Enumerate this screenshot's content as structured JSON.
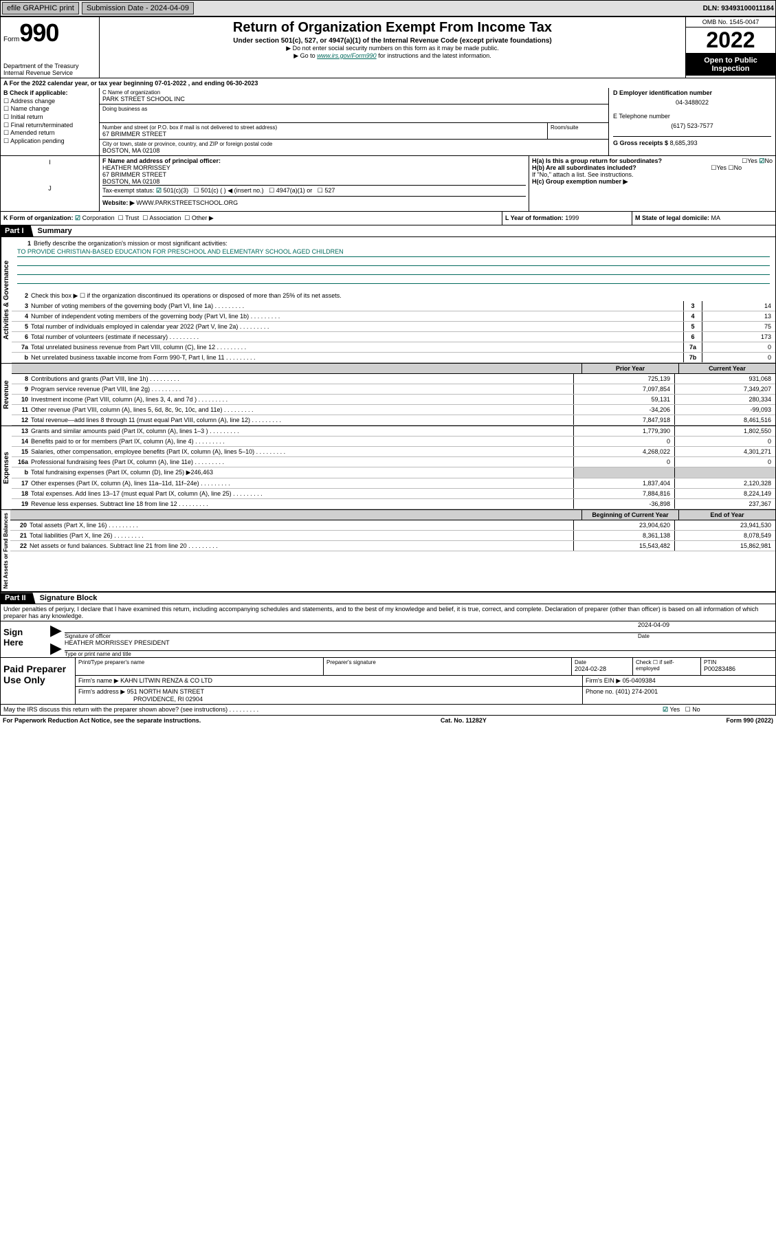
{
  "topbar": {
    "efile": "efile GRAPHIC print",
    "submission": "Submission Date - 2024-04-09",
    "dln": "DLN: 93493100011184"
  },
  "header": {
    "form_word": "Form",
    "form_num": "990",
    "title": "Return of Organization Exempt From Income Tax",
    "sub1": "Under section 501(c), 527, or 4947(a)(1) of the Internal Revenue Code (except private foundations)",
    "sub2": "▶ Do not enter social security numbers on this form as it may be made public.",
    "sub3_pre": "▶ Go to ",
    "sub3_link": "www.irs.gov/Form990",
    "sub3_post": " for instructions and the latest information.",
    "dept": "Department of the Treasury",
    "irs": "Internal Revenue Service",
    "omb": "OMB No. 1545-0047",
    "year": "2022",
    "open": "Open to Public Inspection"
  },
  "row_a": {
    "a": "A For the 2022 calendar year, or tax year beginning 07-01-2022    , and ending 06-30-2023",
    "b_label": "B Check if applicable:",
    "b_items": [
      "Address change",
      "Name change",
      "Initial return",
      "Final return/terminated",
      "Amended return",
      "Application pending"
    ],
    "c_label": "C Name of organization",
    "c_name": "PARK STREET SCHOOL INC",
    "dba": "Doing business as",
    "addr_label": "Number and street (or P.O. box if mail is not delivered to street address)",
    "room": "Room/suite",
    "addr": "67 BRIMMER STREET",
    "city_label": "City or town, state or province, country, and ZIP or foreign postal code",
    "city": "BOSTON, MA  02108",
    "d_label": "D Employer identification number",
    "d_val": "04-3488022",
    "e_label": "E Telephone number",
    "e_val": "(617) 523-7577",
    "g_label": "G Gross receipts $",
    "g_val": "8,685,393"
  },
  "row_f": {
    "f_label": "F Name and address of principal officer:",
    "f_name": "HEATHER MORRISSEY",
    "f_addr1": "67 BRIMMER STREET",
    "f_addr2": "BOSTON, MA  02108",
    "i_label": "Tax-exempt status:",
    "i_501c3": "501(c)(3)",
    "i_501c": "501(c) (   ) ◀ (insert no.)",
    "i_4947": "4947(a)(1) or",
    "i_527": "527",
    "j_label": "Website: ▶",
    "j_val": "WWW.PARKSTREETSCHOOL.ORG",
    "ha_label": "H(a)  Is this a group return for subordinates?",
    "ha_yes": "Yes",
    "ha_no": "No",
    "hb_label": "H(b)  Are all subordinates included?",
    "hb_note": "If \"No,\" attach a list. See instructions.",
    "hc_label": "H(c)  Group exemption number ▶"
  },
  "row_k": {
    "k_label": "K Form of organization:",
    "k_corp": "Corporation",
    "k_trust": "Trust",
    "k_assoc": "Association",
    "k_other": "Other ▶",
    "l_label": "L Year of formation: ",
    "l_val": "1999",
    "m_label": "M State of legal domicile: ",
    "m_val": "MA"
  },
  "part1": {
    "header": "Part I",
    "title": "Summary",
    "briefly_label": "Briefly describe the organization's mission or most significant activities:",
    "mission": "TO PROVIDE CHRISTIAN-BASED EDUCATION FOR PRESCHOOL AND ELEMENTARY SCHOOL AGED CHILDREN",
    "line2": "Check this box ▶ ☐  if the organization discontinued its operations or disposed of more than 25% of its net assets.",
    "governance_label": "Activities & Governance",
    "revenue_label": "Revenue",
    "expenses_label": "Expenses",
    "net_label": "Net Assets or Fund Balances",
    "gov_rows": [
      {
        "n": "3",
        "t": "Number of voting members of the governing body (Part VI, line 1a)",
        "box": "3",
        "v": "14"
      },
      {
        "n": "4",
        "t": "Number of independent voting members of the governing body (Part VI, line 1b)",
        "box": "4",
        "v": "13"
      },
      {
        "n": "5",
        "t": "Total number of individuals employed in calendar year 2022 (Part V, line 2a)",
        "box": "5",
        "v": "75"
      },
      {
        "n": "6",
        "t": "Total number of volunteers (estimate if necessary)",
        "box": "6",
        "v": "173"
      },
      {
        "n": "7a",
        "t": "Total unrelated business revenue from Part VIII, column (C), line 12",
        "box": "7a",
        "v": "0"
      },
      {
        "n": "b",
        "t": "Net unrelated business taxable income from Form 990-T, Part I, line 11",
        "box": "7b",
        "v": "0"
      }
    ],
    "prior_label": "Prior Year",
    "current_label": "Current Year",
    "rev_rows": [
      {
        "n": "8",
        "t": "Contributions and grants (Part VIII, line 1h)",
        "p": "725,139",
        "c": "931,068"
      },
      {
        "n": "9",
        "t": "Program service revenue (Part VIII, line 2g)",
        "p": "7,097,854",
        "c": "7,349,207"
      },
      {
        "n": "10",
        "t": "Investment income (Part VIII, column (A), lines 3, 4, and 7d )",
        "p": "59,131",
        "c": "280,334"
      },
      {
        "n": "11",
        "t": "Other revenue (Part VIII, column (A), lines 5, 6d, 8c, 9c, 10c, and 11e)",
        "p": "-34,206",
        "c": "-99,093"
      },
      {
        "n": "12",
        "t": "Total revenue—add lines 8 through 11 (must equal Part VIII, column (A), line 12)",
        "p": "7,847,918",
        "c": "8,461,516"
      }
    ],
    "exp_rows": [
      {
        "n": "13",
        "t": "Grants and similar amounts paid (Part IX, column (A), lines 1–3 )",
        "p": "1,779,390",
        "c": "1,802,550"
      },
      {
        "n": "14",
        "t": "Benefits paid to or for members (Part IX, column (A), line 4)",
        "p": "0",
        "c": "0"
      },
      {
        "n": "15",
        "t": "Salaries, other compensation, employee benefits (Part IX, column (A), lines 5–10)",
        "p": "4,268,022",
        "c": "4,301,271"
      },
      {
        "n": "16a",
        "t": "Professional fundraising fees (Part IX, column (A), line 11e)",
        "p": "0",
        "c": "0"
      }
    ],
    "line16b_pre": "Total fundraising expenses (Part IX, column (D), line 25) ▶",
    "line16b_val": "246,463",
    "exp_rows2": [
      {
        "n": "17",
        "t": "Other expenses (Part IX, column (A), lines 11a–11d, 11f–24e)",
        "p": "1,837,404",
        "c": "2,120,328"
      },
      {
        "n": "18",
        "t": "Total expenses. Add lines 13–17 (must equal Part IX, column (A), line 25)",
        "p": "7,884,816",
        "c": "8,224,149"
      },
      {
        "n": "19",
        "t": "Revenue less expenses. Subtract line 18 from line 12",
        "p": "-36,898",
        "c": "237,367"
      }
    ],
    "begin_label": "Beginning of Current Year",
    "end_label": "End of Year",
    "net_rows": [
      {
        "n": "20",
        "t": "Total assets (Part X, line 16)",
        "p": "23,904,620",
        "c": "23,941,530"
      },
      {
        "n": "21",
        "t": "Total liabilities (Part X, line 26)",
        "p": "8,361,138",
        "c": "8,078,549"
      },
      {
        "n": "22",
        "t": "Net assets or fund balances. Subtract line 21 from line 20",
        "p": "15,543,482",
        "c": "15,862,981"
      }
    ]
  },
  "part2": {
    "header": "Part II",
    "title": "Signature Block",
    "declare": "Under penalties of perjury, I declare that I have examined this return, including accompanying schedules and statements, and to the best of my knowledge and belief, it is true, correct, and complete. Declaration of preparer (other than officer) is based on all information of which preparer has any knowledge.",
    "sign_here": "Sign Here",
    "sig_officer": "Signature of officer",
    "sig_date": "Date",
    "sig_date_val": "2024-04-09",
    "sig_name": "HEATHER MORRISSEY PRESIDENT",
    "sig_name_label": "Type or print name and title",
    "paid": "Paid Preparer Use Only",
    "print_name": "Print/Type preparer's name",
    "prep_sig": "Preparer's signature",
    "date_label": "Date",
    "date_val": "2024-02-28",
    "check_if": "Check ☐ if self-employed",
    "ptin_label": "PTIN",
    "ptin": "P00283486",
    "firm_name_label": "Firm's name    ▶",
    "firm_name": "KAHN LITWIN RENZA & CO LTD",
    "firm_ein_label": "Firm's EIN ▶",
    "firm_ein": "05-0409384",
    "firm_addr_label": "Firm's address ▶",
    "firm_addr1": "951 NORTH MAIN STREET",
    "firm_addr2": "PROVIDENCE, RI  02904",
    "phone_label": "Phone no.",
    "phone": "(401) 274-2001",
    "may_irs": "May the IRS discuss this return with the preparer shown above? (see instructions)",
    "yes": "Yes",
    "no": "No"
  },
  "footer": {
    "left": "For Paperwork Reduction Act Notice, see the separate instructions.",
    "mid": "Cat. No. 11282Y",
    "right": "Form 990 (2022)"
  }
}
